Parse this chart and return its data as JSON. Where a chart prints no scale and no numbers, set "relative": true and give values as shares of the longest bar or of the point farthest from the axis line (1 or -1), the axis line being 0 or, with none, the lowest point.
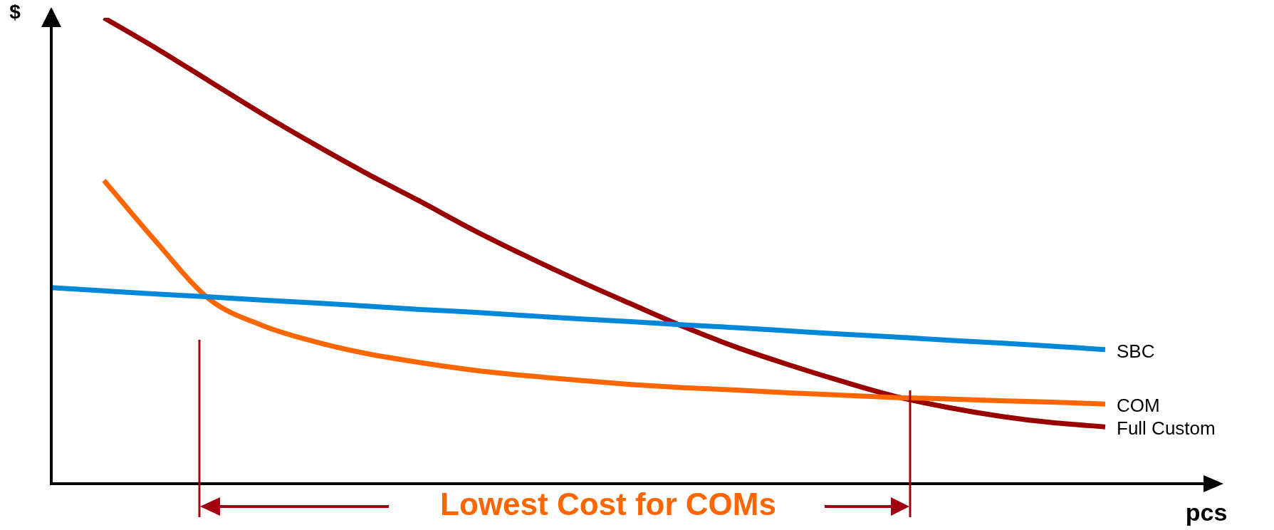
{
  "chart_data": {
    "type": "line",
    "relative": true,
    "legend": false,
    "marker": "none",
    "xlabel": "pcs",
    "ylabel": "$",
    "categories": [
      null,
      null,
      null,
      null,
      null,
      null,
      null,
      null,
      null,
      null,
      null,
      null,
      null,
      null,
      null,
      null,
      null,
      null,
      null,
      null,
      null
    ],
    "series": [
      {
        "name": "SBC",
        "color": "#0088d8",
        "values": [
          0.421,
          0.414,
          0.407,
          0.401,
          0.394,
          0.388,
          0.381,
          0.374,
          0.368,
          0.361,
          0.354,
          0.348,
          0.341,
          0.335,
          0.328,
          0.321,
          0.315,
          0.308,
          0.302,
          0.295,
          0.288
        ]
      },
      {
        "name": "COM",
        "color": "#ff6600",
        "values": [
          null,
          0.651,
          0.518,
          0.396,
          0.34,
          0.305,
          0.279,
          0.26,
          0.244,
          0.232,
          0.222,
          0.213,
          0.206,
          0.201,
          0.195,
          0.19,
          0.185,
          0.182,
          0.178,
          0.175,
          0.171
        ]
      },
      {
        "name": "Full Custom",
        "color": "#990000",
        "values": [
          null,
          1.0,
          0.934,
          0.864,
          0.794,
          0.728,
          0.665,
          0.606,
          0.545,
          0.489,
          0.436,
          0.386,
          0.337,
          0.293,
          0.255,
          0.22,
          0.188,
          0.164,
          0.145,
          0.131,
          0.122
        ]
      }
    ],
    "annotations": [
      "Lowest Cost for COMs"
    ]
  }
}
